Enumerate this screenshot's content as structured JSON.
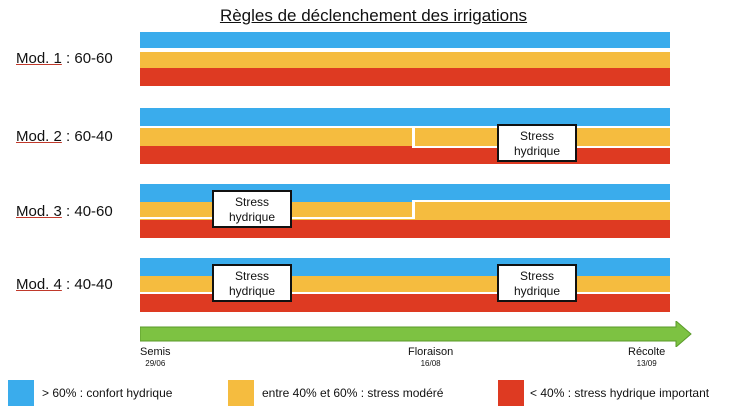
{
  "title": "Règles de déclenchement des irrigations",
  "modules": [
    {
      "name": "Mod. 1",
      "rule": " : 60-60"
    },
    {
      "name": "Mod. 2",
      "rule": " : 60-40"
    },
    {
      "name": "Mod. 3",
      "rule": " : 40-60"
    },
    {
      "name": "Mod. 4",
      "rule": " : 40-40"
    }
  ],
  "stress_label_line1": "Stress",
  "stress_label_line2": "hydrique",
  "timeline": {
    "start": {
      "label": "Semis",
      "date": "29/06"
    },
    "middle": {
      "label": "Floraison",
      "date": "16/08"
    },
    "end": {
      "label": "Récolte",
      "date": "13/09"
    }
  },
  "legend": [
    {
      "color": "#3aacec",
      "text": "> 60% : confort hydrique"
    },
    {
      "color": "#f5bc3f",
      "text": "entre 40% et 60% : stress modéré"
    },
    {
      "color": "#de3a22",
      "text": "< 40% : stress hydrique important"
    }
  ],
  "colors": {
    "blue": "#3aacec",
    "yellow": "#f5bc3f",
    "red": "#de3a22",
    "arrow": "#7dc242"
  }
}
